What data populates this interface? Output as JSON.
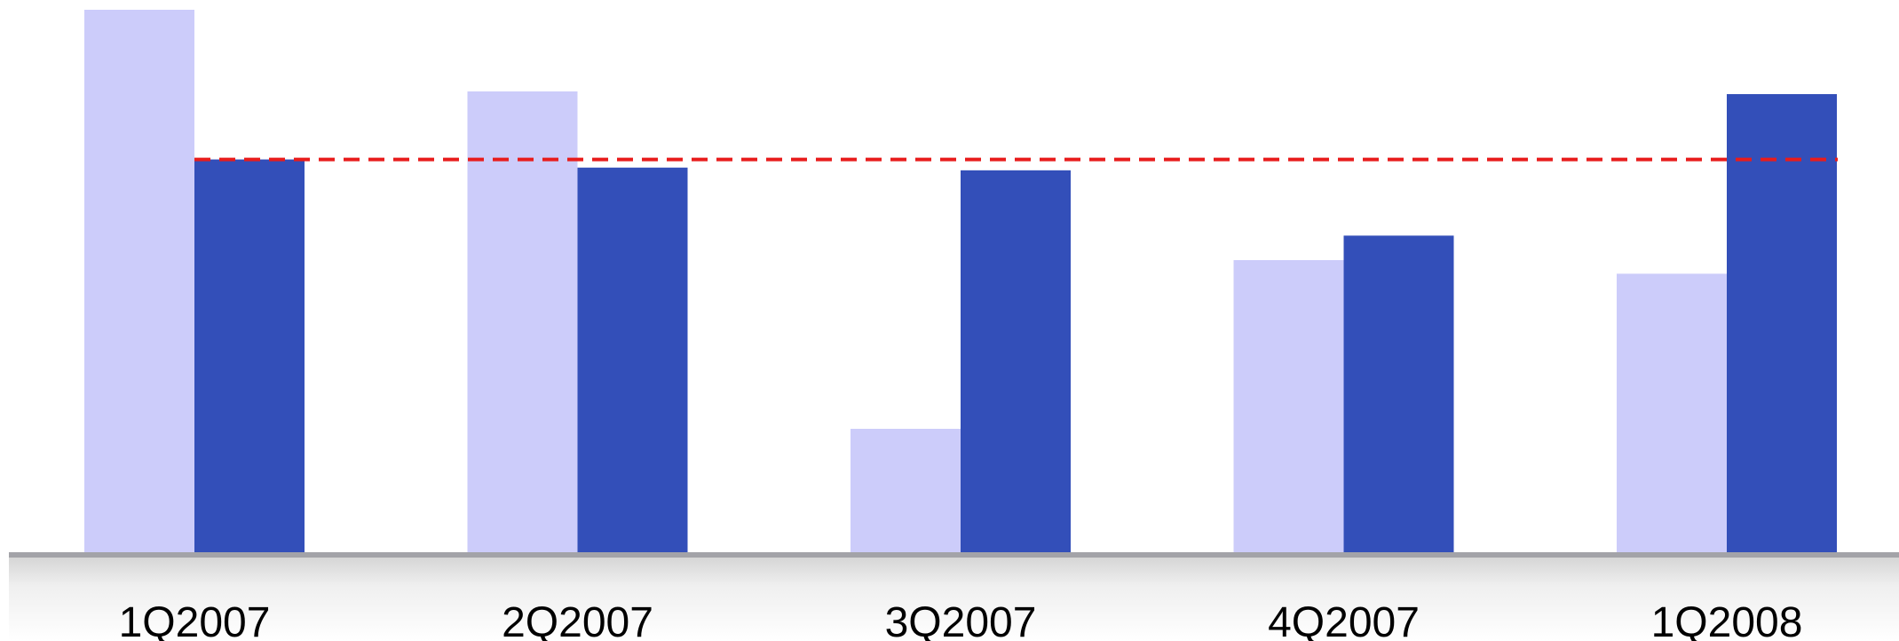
{
  "chart_data": {
    "type": "bar",
    "categories": [
      "1Q2007",
      "2Q2007",
      "3Q2007",
      "4Q2007",
      "1Q2008"
    ],
    "series": [
      {
        "color": "#ccccfa",
        "values": [
          100,
          85,
          23,
          54,
          51.5
        ]
      },
      {
        "color": "#334fb9",
        "values": [
          72.5,
          71,
          70.5,
          58.5,
          84.5
        ]
      }
    ],
    "reference_line": {
      "value": 72.5,
      "color": "#e81c1c",
      "style": "dashed"
    },
    "ylim": [
      0,
      100
    ],
    "grid": false,
    "legend": "none",
    "title": "",
    "xlabel": "",
    "ylabel": ""
  }
}
